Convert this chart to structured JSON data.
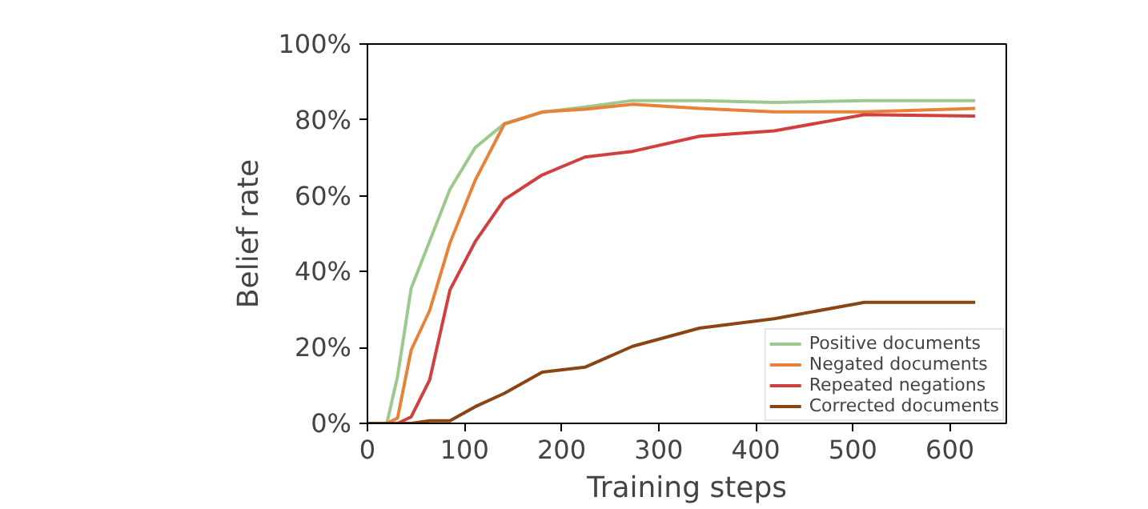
{
  "chart_data": {
    "type": "line",
    "xlabel": "Training steps",
    "ylabel": "Belief rate",
    "xlim": [
      0,
      658
    ],
    "xticks": [
      0,
      100,
      200,
      300,
      400,
      500,
      600
    ],
    "ylim": [
      0,
      100
    ],
    "yticks": [
      {
        "value": 0,
        "label": "0%"
      },
      {
        "value": 20,
        "label": "20%"
      },
      {
        "value": 40,
        "label": "40%"
      },
      {
        "value": 60,
        "label": "60%"
      },
      {
        "value": 80,
        "label": "80%"
      },
      {
        "value": 100,
        "label": "100%"
      }
    ],
    "grid": false,
    "legend": "bottom right",
    "marker": "none",
    "line_style": "solid",
    "series": [
      {
        "name": "Positive documents",
        "color": "#9dc98e",
        "x": [
          0,
          20,
          31,
          45,
          85,
          111,
          141,
          180,
          224,
          273,
          342,
          419,
          512,
          626
        ],
        "values": [
          0,
          0,
          12.4,
          35.6,
          61.7,
          72.7,
          79,
          82,
          83.4,
          85.1,
          85.1,
          84.6,
          85.1,
          85.1
        ]
      },
      {
        "name": "Negated documents",
        "color": "#e8823a",
        "x": [
          0,
          20,
          31,
          45,
          64,
          85,
          111,
          141,
          180,
          224,
          273,
          342,
          419,
          512,
          626
        ],
        "values": [
          0,
          0,
          1.4,
          19.3,
          29.7,
          47.6,
          64.1,
          78.9,
          82.1,
          82.8,
          84.1,
          83,
          82.1,
          82.1,
          83
        ]
      },
      {
        "name": "Repeated negations",
        "color": "#d0403f",
        "x": [
          0,
          31,
          45,
          64,
          85,
          111,
          141,
          180,
          224,
          273,
          342,
          419,
          512,
          626
        ],
        "values": [
          0,
          0,
          1.7,
          11.4,
          35.2,
          47.9,
          59,
          65.5,
          70.2,
          71.7,
          75.7,
          77.1,
          81.4,
          81
        ]
      },
      {
        "name": "Corrected documents",
        "color": "#8b4513",
        "x": [
          0,
          45,
          64,
          85,
          111,
          141,
          180,
          224,
          273,
          342,
          419,
          512,
          626
        ],
        "values": [
          0,
          0,
          0.7,
          0.7,
          4.4,
          7.9,
          13.5,
          14.8,
          20.3,
          25.1,
          27.6,
          31.9,
          31.9
        ]
      }
    ]
  }
}
